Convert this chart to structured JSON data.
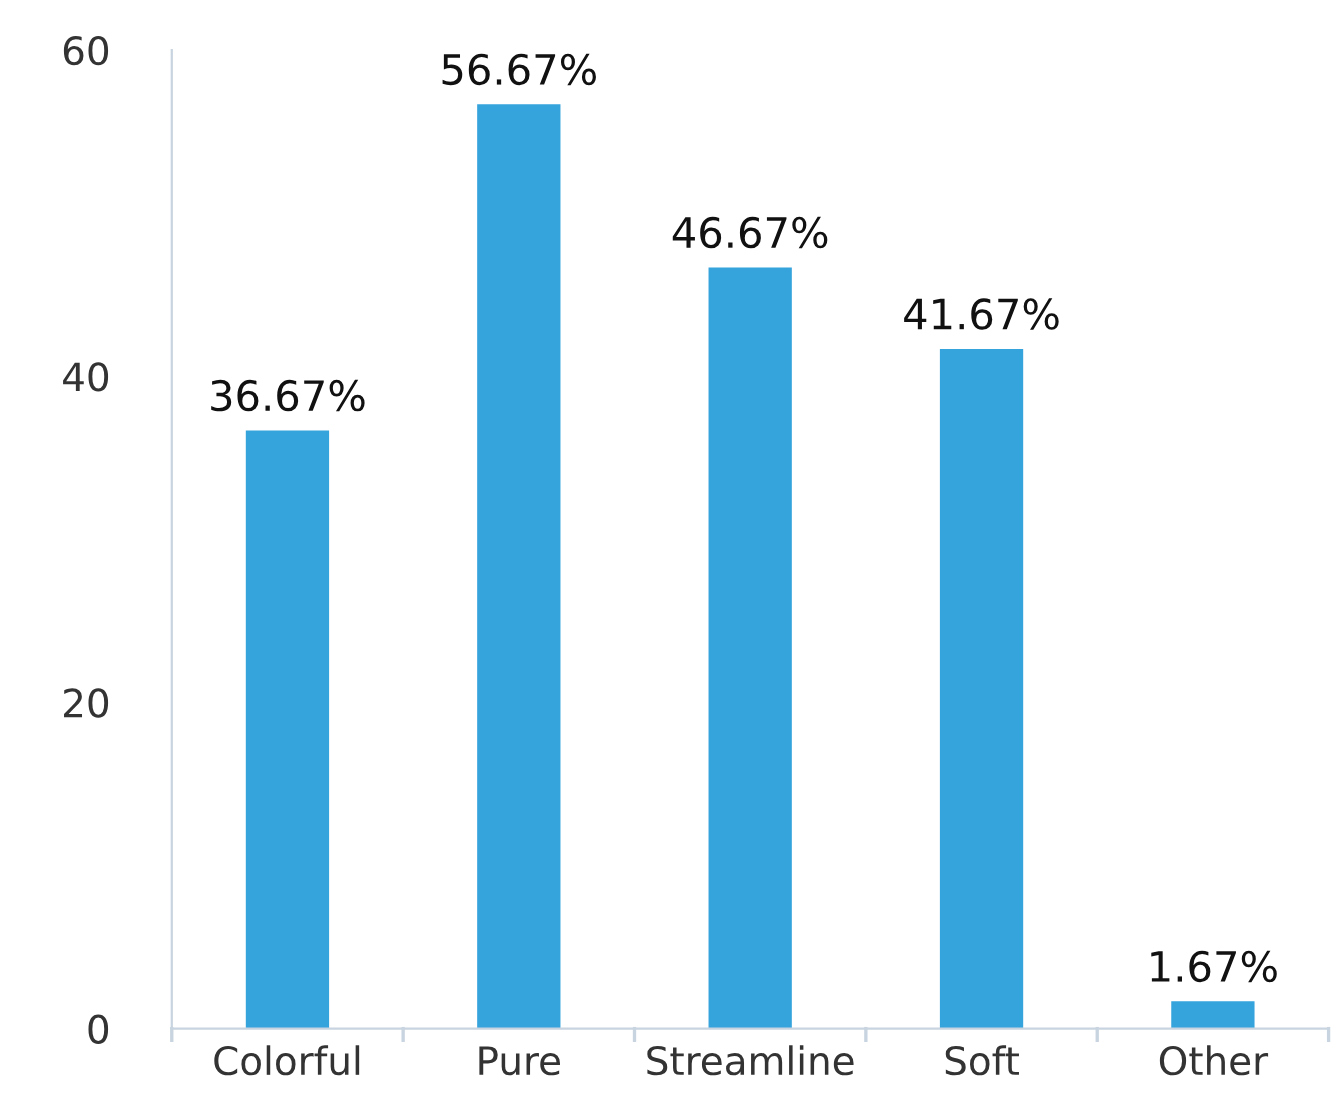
{
  "chart_data": {
    "type": "bar",
    "categories": [
      "Colorful",
      "Pure",
      "Streamline",
      "Soft",
      "Other"
    ],
    "values": [
      36.67,
      56.67,
      46.67,
      41.67,
      1.67
    ],
    "value_labels": [
      "36.67%",
      "56.67%",
      "46.67%",
      "41.67%",
      "1.67%"
    ],
    "color": "#35a3dc",
    "ylim": [
      0,
      60
    ],
    "yticks": [
      0,
      20,
      40,
      60
    ],
    "grid": false,
    "legend": false
  }
}
